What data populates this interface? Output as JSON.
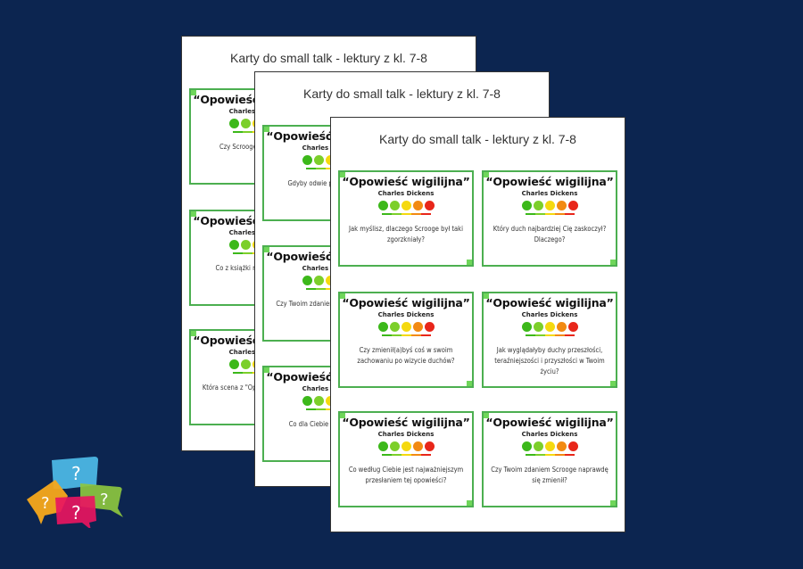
{
  "colors": {
    "background": "#0c2550",
    "card_border": "#4caf50",
    "faces": [
      "#3cb81a",
      "#7ccf2a",
      "#f5d90f",
      "#f28a12",
      "#e8261a"
    ]
  },
  "pages": [
    {
      "title": "Karty do small talk - lektury z kl. 7-8",
      "cards": [
        {
          "title": "“Opowieść wigilijna”",
          "author": "Charles Dickens",
          "question": "Czy Scrooge zas szansę?"
        },
        {
          "title": "“Opowieść wigilijna”",
          "author": "Charles Dickens",
          "question": "Co z książki mog współczes"
        },
        {
          "title": "“Opowieść wigilijna”",
          "author": "Charles Dickens",
          "question": "Która scena z \"Op najbardziej zapad"
        }
      ]
    },
    {
      "title": "Karty do small talk - lektury z kl. 7-8",
      "cards": [
        {
          "title": "“Opowieść wigilijna”",
          "author": "Charles Dickens",
          "question": "Gdyby odwie przeszłości, co"
        },
        {
          "title": "“Opowieść wigilijna”",
          "author": "Charles Dickens",
          "question": "Czy Twoim zdaniem się zmienić tak,"
        },
        {
          "title": "“Opowieść wigilijna”",
          "author": "Charles Dickens",
          "question": "Co dla Ciebie ozna duch św"
        }
      ]
    },
    {
      "title": "Karty do small talk - lektury z kl. 7-8",
      "cards": [
        {
          "title": "“Opowieść wigilijna”",
          "author": "Charles Dickens",
          "question": "Jak myślisz, dlaczego Scrooge był taki zgorzkniały?"
        },
        {
          "title": "“Opowieść wigilijna”",
          "author": "Charles Dickens",
          "question": "Który duch najbardziej Cię zaskoczył? Dlaczego?"
        },
        {
          "title": "“Opowieść wigilijna”",
          "author": "Charles Dickens",
          "question": "Czy zmienił(a)byś coś w swoim zachowaniu po wizycie duchów?"
        },
        {
          "title": "“Opowieść wigilijna”",
          "author": "Charles Dickens",
          "question": "Jak wyglądałyby duchy przeszłości, teraźniejszości i przyszłości w Twoim życiu?"
        },
        {
          "title": "“Opowieść wigilijna”",
          "author": "Charles Dickens",
          "question": "Co według Ciebie jest najważniejszym przesłaniem tej opowieści?"
        },
        {
          "title": "“Opowieść wigilijna”",
          "author": "Charles Dickens",
          "question": "Czy Twoim zdaniem Scrooge naprawdę się zmienił?"
        }
      ]
    }
  ],
  "logo": {
    "icon": "question-speech-bubbles-icon",
    "glyph": "?"
  }
}
